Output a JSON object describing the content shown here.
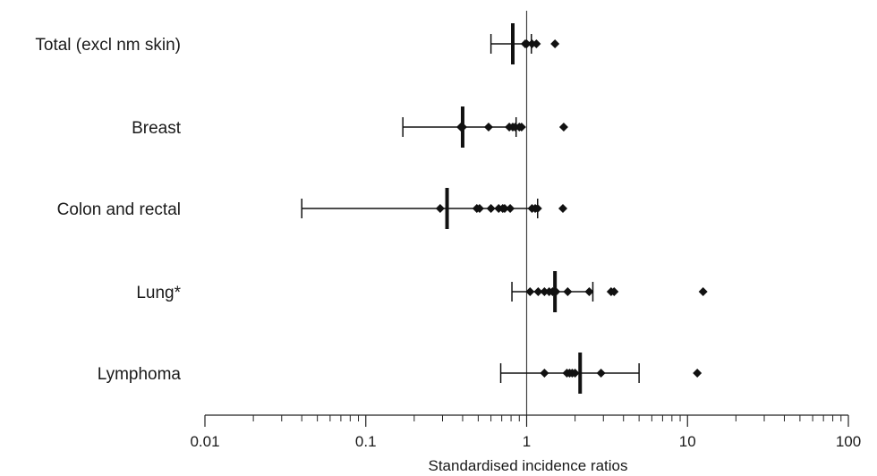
{
  "chart_data": {
    "type": "scatter",
    "xlabel": "Standardised incidence ratios",
    "ylabel": "",
    "x_scale": "log",
    "xlim": [
      0.01,
      100
    ],
    "x_ticks": [
      {
        "value": 0.01,
        "label": "0.01"
      },
      {
        "value": 0.1,
        "label": "0.1"
      },
      {
        "value": 1,
        "label": "1"
      },
      {
        "value": 10,
        "label": "10"
      },
      {
        "value": 100,
        "label": "100"
      }
    ],
    "reference_line": 1,
    "grid": false,
    "categories": [
      "Total (excl nm skin)",
      "Breast",
      "Colon and rectal",
      "Lung*",
      "Lymphoma"
    ],
    "rows": [
      {
        "category": "Total (excl nm skin)",
        "estimate": 0.82,
        "ci_low": 0.6,
        "ci_high": 1.07,
        "points": [
          0.98,
          1.0,
          1.08,
          1.15,
          1.5
        ]
      },
      {
        "category": "Breast",
        "estimate": 0.4,
        "ci_low": 0.17,
        "ci_high": 0.86,
        "points": [
          0.39,
          0.4,
          0.58,
          0.78,
          0.82,
          0.85,
          0.9,
          0.93,
          1.7
        ]
      },
      {
        "category": "Colon and rectal",
        "estimate": 0.32,
        "ci_low": 0.04,
        "ci_high": 1.17,
        "points": [
          0.29,
          0.49,
          0.51,
          0.6,
          0.67,
          0.71,
          0.73,
          0.79,
          1.08,
          1.13,
          1.17,
          1.68
        ]
      },
      {
        "category": "Lung*",
        "estimate": 1.5,
        "ci_low": 0.81,
        "ci_high": 2.58,
        "points": [
          1.05,
          1.18,
          1.29,
          1.38,
          1.45,
          1.52,
          1.8,
          2.45,
          3.35,
          3.5,
          12.5
        ]
      },
      {
        "category": "Lymphoma",
        "estimate": 2.15,
        "ci_low": 0.69,
        "ci_high": 5.0,
        "points": [
          1.29,
          1.78,
          1.85,
          1.92,
          2.0,
          2.9,
          11.5
        ]
      }
    ]
  }
}
